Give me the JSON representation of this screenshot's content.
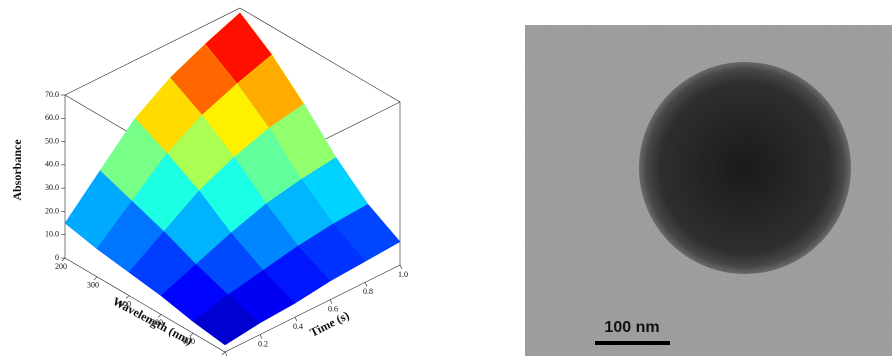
{
  "chart_data": {
    "type": "surface3d",
    "xlabel": "Wavelength (nm)",
    "ylabel": "Time (s)",
    "zlabel": "Absorbance",
    "x": [
      200,
      300,
      400,
      500,
      600,
      700
    ],
    "y": [
      0,
      0.2,
      0.4,
      0.6,
      0.8,
      1
    ],
    "z": [
      [
        15,
        30,
        45,
        55,
        62,
        68
      ],
      [
        12,
        25,
        38,
        47,
        53,
        58
      ],
      [
        10,
        20,
        30,
        37,
        42,
        45
      ],
      [
        8,
        14,
        20,
        25,
        28,
        30
      ],
      [
        5,
        9,
        12,
        15,
        17,
        18
      ],
      [
        3,
        5,
        6,
        8,
        9,
        10
      ]
    ],
    "xlim": [
      200,
      700
    ],
    "ylim": [
      0,
      1
    ],
    "zlim": [
      0,
      70
    ],
    "xticks": [
      200,
      300,
      400,
      500,
      600,
      700
    ],
    "yticks": [
      0,
      0.2,
      0.4,
      0.6,
      0.8,
      {
        "value": 1,
        "label": "1.0"
      }
    ],
    "zticks": [
      0,
      {
        "value": 10,
        "label": "10.0"
      },
      {
        "value": 20,
        "label": "20.0"
      },
      {
        "value": 30,
        "label": "30.0"
      },
      {
        "value": 40,
        "label": "40.0"
      },
      {
        "value": 50,
        "label": "50.0"
      },
      {
        "value": 60,
        "label": "60.0"
      },
      {
        "value": 70,
        "label": "70.0"
      }
    ],
    "colormap": "jet"
  },
  "image": {
    "scale_bar": "100 nm"
  }
}
